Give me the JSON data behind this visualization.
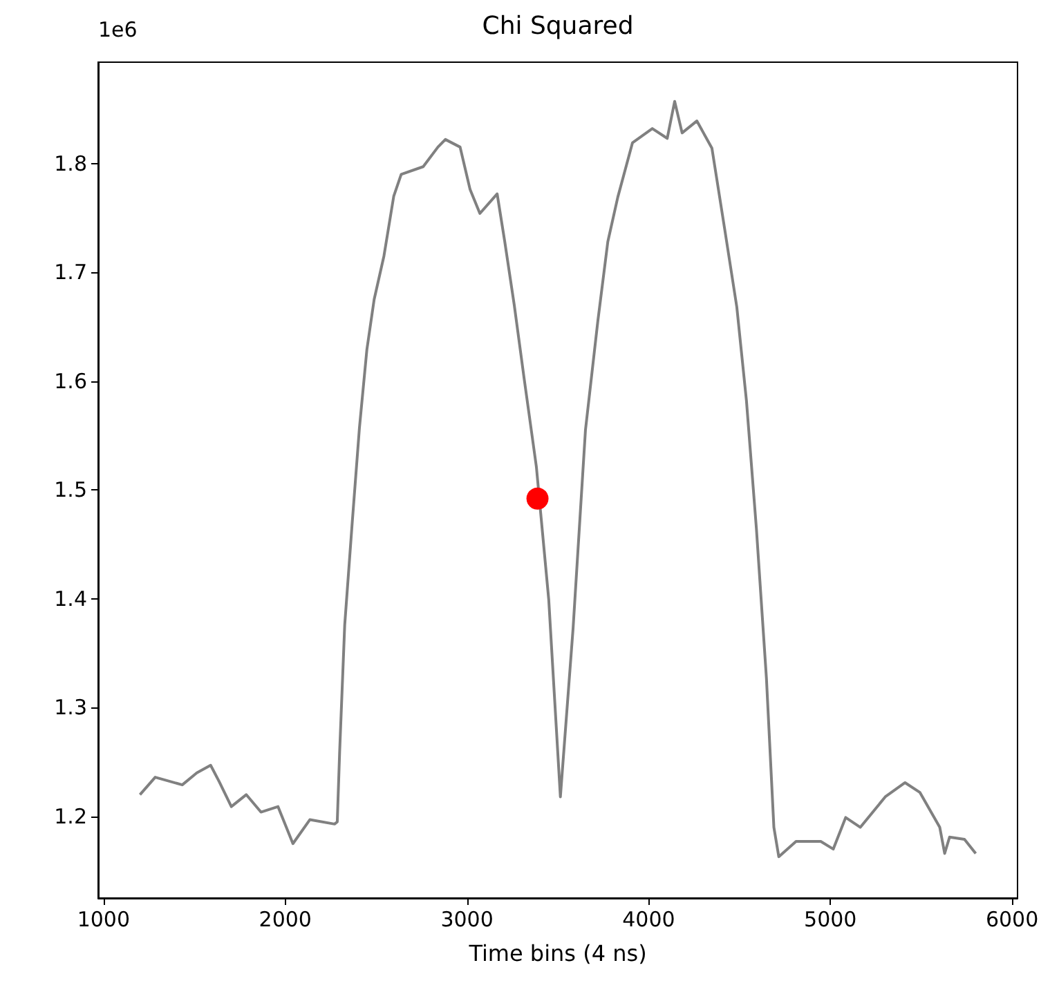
{
  "chart_data": {
    "type": "line",
    "title": "Chi Squared",
    "xlabel": "Time bins (4 ns)",
    "annotations": [
      "1e6"
    ],
    "xlim": [
      970,
      6030
    ],
    "ylim": [
      1.125,
      1.893
    ],
    "xticks": [
      1000,
      2000,
      3000,
      4000,
      5000,
      6000
    ],
    "yticks": [
      1.2,
      1.3,
      1.4,
      1.5,
      1.6,
      1.7,
      1.8
    ],
    "grid": false,
    "series": [
      {
        "color": "#808080",
        "marker": "none",
        "line_style": "solid",
        "x": [
          1200,
          1284,
          1433,
          1513,
          1589,
          1636,
          1703,
          1785,
          1866,
          1960,
          2042,
          2135,
          2271,
          2286,
          2299,
          2327,
          2367,
          2408,
          2449,
          2489,
          2543,
          2597,
          2638,
          2759,
          2840,
          2881,
          2962,
          3017,
          3071,
          3166,
          3207,
          3260,
          3314,
          3382,
          3450,
          3514,
          3584,
          3652,
          3720,
          3775,
          3830,
          3911,
          4020,
          4102,
          4143,
          4184,
          4265,
          4348,
          4417,
          4485,
          4538,
          4593,
          4648,
          4689,
          4716,
          4811,
          4947,
          5016,
          5084,
          5165,
          5302,
          5411,
          5493,
          5602,
          5629,
          5656,
          5738,
          5800
        ],
        "values": [
          1.22,
          1.236,
          1.229,
          1.24,
          1.247,
          1.232,
          1.209,
          1.22,
          1.204,
          1.209,
          1.175,
          1.197,
          1.193,
          1.195,
          1.259,
          1.376,
          1.467,
          1.557,
          1.629,
          1.675,
          1.715,
          1.77,
          1.79,
          1.797,
          1.815,
          1.822,
          1.815,
          1.776,
          1.754,
          1.772,
          1.729,
          1.67,
          1.603,
          1.521,
          1.399,
          1.218,
          1.373,
          1.555,
          1.655,
          1.728,
          1.769,
          1.819,
          1.832,
          1.823,
          1.857,
          1.828,
          1.839,
          1.814,
          1.741,
          1.668,
          1.582,
          1.464,
          1.327,
          1.19,
          1.163,
          1.177,
          1.177,
          1.17,
          1.199,
          1.19,
          1.218,
          1.231,
          1.222,
          1.19,
          1.166,
          1.181,
          1.179,
          1.166
        ]
      },
      {
        "type": "scatter",
        "color": "#ff0000",
        "marker": "circle",
        "x": [
          3388
        ],
        "values": [
          1.492
        ]
      }
    ]
  }
}
